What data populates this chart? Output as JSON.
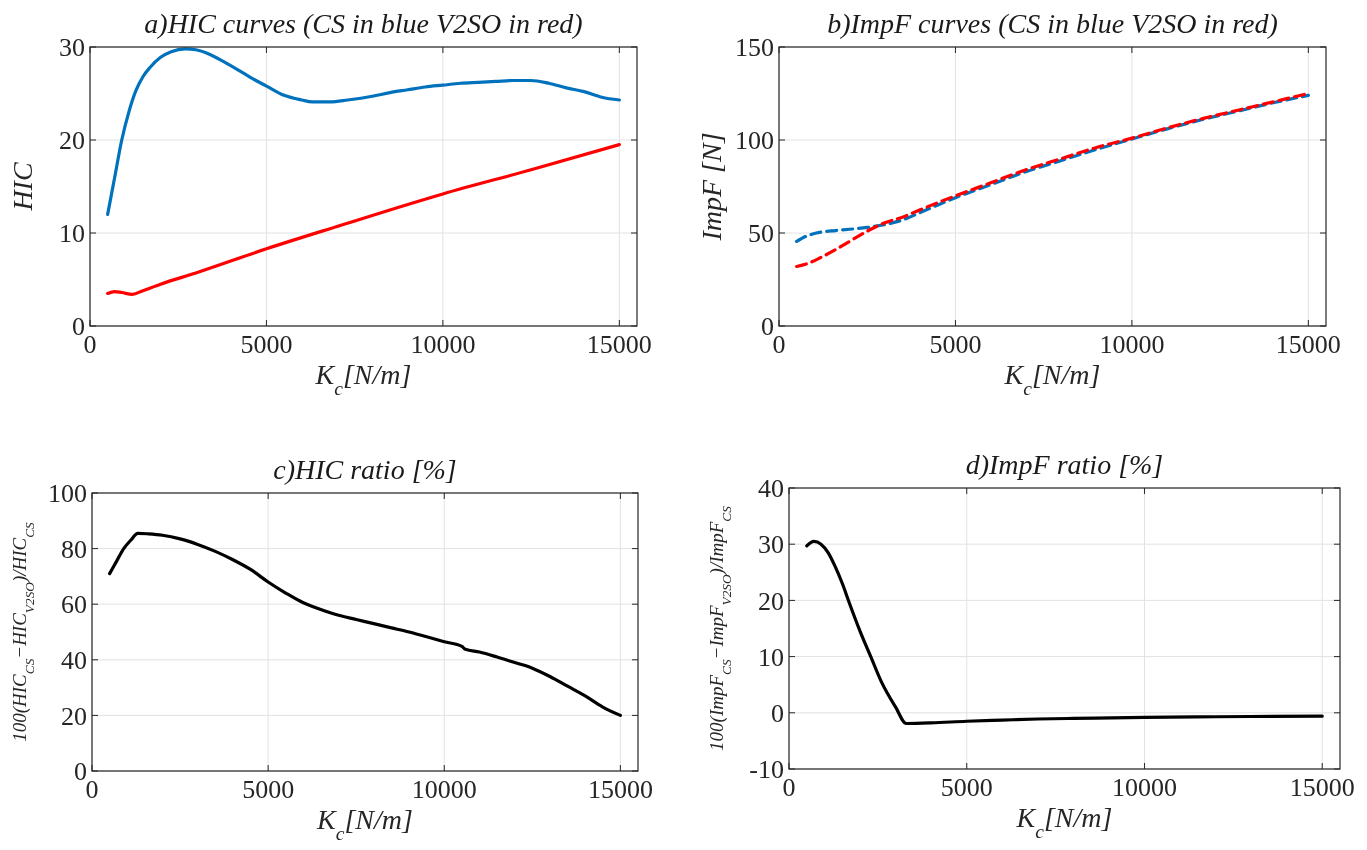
{
  "chart_data": [
    {
      "type": "line",
      "title": "a)HIC curves (CS in blue V2SO in red)",
      "xlabel": "K$_{c}$[N/m]",
      "ylabel": "HIC",
      "xlim": [
        0,
        15500
      ],
      "ylim": [
        0,
        30
      ],
      "xticks": [
        0,
        5000,
        10000,
        15000
      ],
      "yticks": [
        0,
        10,
        20,
        30
      ],
      "grid": true,
      "line_style": "solid",
      "series": [
        {
          "color": "#0072bd",
          "x": [
            500,
            700,
            900,
            1100,
            1300,
            1500,
            1700,
            2000,
            2300,
            2700,
            3000,
            3400,
            3800,
            4300,
            4700,
            5000,
            5500,
            6000,
            6300,
            6800,
            7300,
            8000,
            8500,
            9000,
            9500,
            10000,
            10500,
            11000,
            11500,
            12000,
            12500,
            13000,
            13500,
            14000,
            14500,
            15000
          ],
          "values": [
            12,
            16,
            20,
            23,
            25.3,
            26.8,
            27.8,
            28.9,
            29.5,
            29.8,
            29.7,
            29.2,
            28.4,
            27.3,
            26.4,
            25.8,
            24.8,
            24.3,
            24.1,
            24.1,
            24.3,
            24.7,
            25.1,
            25.4,
            25.7,
            25.9,
            26.1,
            26.2,
            26.3,
            26.4,
            26.4,
            26.1,
            25.6,
            25.2,
            24.6,
            24.3
          ]
        },
        {
          "color": "#ff0000",
          "x": [
            500,
            700,
            900,
            1200,
            1500,
            2000,
            3000,
            5000,
            7000,
            10000,
            12500,
            15000
          ],
          "values": [
            3.5,
            3.7,
            3.6,
            3.4,
            3.8,
            4.5,
            5.7,
            8.3,
            10.7,
            14.2,
            16.8,
            19.5
          ]
        }
      ]
    },
    {
      "type": "line",
      "title": "b)ImpF curves (CS in blue V2SO in red)",
      "xlabel": "K$_{c}$[N/m]",
      "ylabel": "ImpF [N]",
      "xlim": [
        0,
        15500
      ],
      "ylim": [
        0,
        150
      ],
      "xticks": [
        0,
        5000,
        10000,
        15000
      ],
      "yticks": [
        0,
        50,
        100,
        150
      ],
      "grid": true,
      "series": [
        {
          "color": "#0072bd",
          "line_style": "dashed",
          "x": [
            500,
            800,
            1200,
            1600,
            2000,
            2500,
            3000,
            3500,
            4000,
            5000,
            6000,
            7000,
            8000,
            9000,
            10000,
            11000,
            12000,
            13000,
            14000,
            15000
          ],
          "values": [
            45.5,
            48.5,
            50.5,
            51.3,
            52,
            53,
            54.5,
            57,
            61,
            69,
            76,
            83,
            89,
            95,
            100.5,
            106,
            111,
            115.5,
            120,
            124
          ]
        },
        {
          "color": "#ff0000",
          "line_style": "dashed",
          "x": [
            500,
            800,
            1200,
            1600,
            2000,
            2500,
            3000,
            3500,
            4000,
            5000,
            6000,
            7000,
            8000,
            9000,
            10000,
            11000,
            12000,
            13000,
            14000,
            15000
          ],
          "values": [
            32,
            33.5,
            37,
            41,
            45.5,
            51,
            55.5,
            58.5,
            62.5,
            70,
            77,
            84,
            90,
            96,
            101,
            106.5,
            111.5,
            116,
            120.5,
            125
          ]
        }
      ]
    },
    {
      "type": "line",
      "title": "c)HIC ratio [%]",
      "xlabel": "K$_{c}$[N/m]",
      "ylabel": "100(HIC$_{CS}$−HIC$_{V2SO}$)/HIC$_{CS}$",
      "xlim": [
        0,
        15500
      ],
      "ylim": [
        0,
        100
      ],
      "xticks": [
        0,
        5000,
        10000,
        15000
      ],
      "yticks": [
        0,
        20,
        40,
        60,
        80,
        100
      ],
      "grid": true,
      "line_style": "solid",
      "series": [
        {
          "color": "#000000",
          "x": [
            500,
            700,
            900,
            1100,
            1300,
            1600,
            2000,
            2500,
            3000,
            3500,
            4000,
            4500,
            5000,
            5500,
            6000,
            6300,
            7000,
            7500,
            8000,
            8500,
            9000,
            9500,
            10000,
            10500,
            10600,
            11000,
            11500,
            12000,
            12500,
            13000,
            13500,
            14000,
            14500,
            15000
          ],
          "values": [
            71,
            75.5,
            80,
            83,
            85.5,
            85.3,
            84.8,
            83.5,
            81.5,
            79,
            76,
            72.5,
            68,
            64,
            60.5,
            59,
            56,
            54.5,
            53,
            51.5,
            50,
            48.3,
            46.5,
            44.8,
            43.8,
            42.8,
            41,
            39,
            37,
            34,
            30.5,
            27,
            23,
            20
          ]
        }
      ]
    },
    {
      "type": "line",
      "title": "d)ImpF ratio [%]",
      "xlabel": "K$_{c}$[N/m]",
      "ylabel": "100(ImpF$_{CS}$−ImpF$_{V2SO}$)/ImpF$_{CS}$",
      "xlim": [
        0,
        15500
      ],
      "ylim": [
        -10,
        40
      ],
      "xticks": [
        0,
        5000,
        10000,
        15000
      ],
      "yticks": [
        -10,
        0,
        10,
        20,
        30,
        40
      ],
      "grid": true,
      "line_style": "solid",
      "series": [
        {
          "color": "#000000",
          "x": [
            500,
            700,
            900,
            1100,
            1300,
            1500,
            1700,
            2000,
            2300,
            2600,
            3000,
            3300,
            4000,
            5000,
            6000,
            7000,
            8000,
            10000,
            12000,
            15000
          ],
          "values": [
            29.7,
            30.5,
            30,
            28.5,
            26,
            23,
            19.5,
            14.5,
            10,
            5.5,
            1,
            -1.9,
            -1.8,
            -1.5,
            -1.3,
            -1.1,
            -1,
            -0.8,
            -0.7,
            -0.6
          ]
        }
      ]
    }
  ]
}
